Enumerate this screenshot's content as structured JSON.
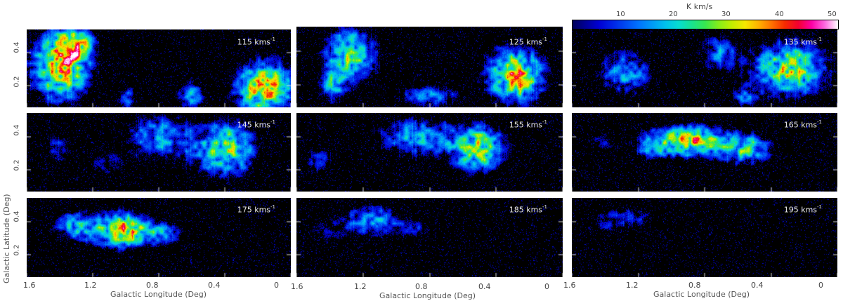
{
  "colorbar": {
    "unit": "K km/s",
    "ticks": [
      "10",
      "20",
      "30",
      "40",
      "50"
    ],
    "min": 0,
    "max": 50
  },
  "axes": {
    "xlabel": "Galactic Longitude (Deg)",
    "ylabel": "Galactic Latitude (Deg)",
    "xticks": [
      "1.6",
      "1.2",
      "0.8",
      "0.4",
      "0"
    ],
    "yticks": [
      "0.2",
      "0.4"
    ]
  },
  "panels": [
    {
      "label": "115 kms",
      "exp": "-1"
    },
    {
      "label": "125 kms",
      "exp": "-1"
    },
    {
      "label": "135 kms",
      "exp": "-1"
    },
    {
      "label": "145 kms",
      "exp": "-1"
    },
    {
      "label": "155 kms",
      "exp": "-1"
    },
    {
      "label": "165 kms",
      "exp": "-1"
    },
    {
      "label": "175 kms",
      "exp": "-1"
    },
    {
      "label": "185 kms",
      "exp": "-1"
    },
    {
      "label": "195 kms",
      "exp": "-1"
    }
  ]
}
